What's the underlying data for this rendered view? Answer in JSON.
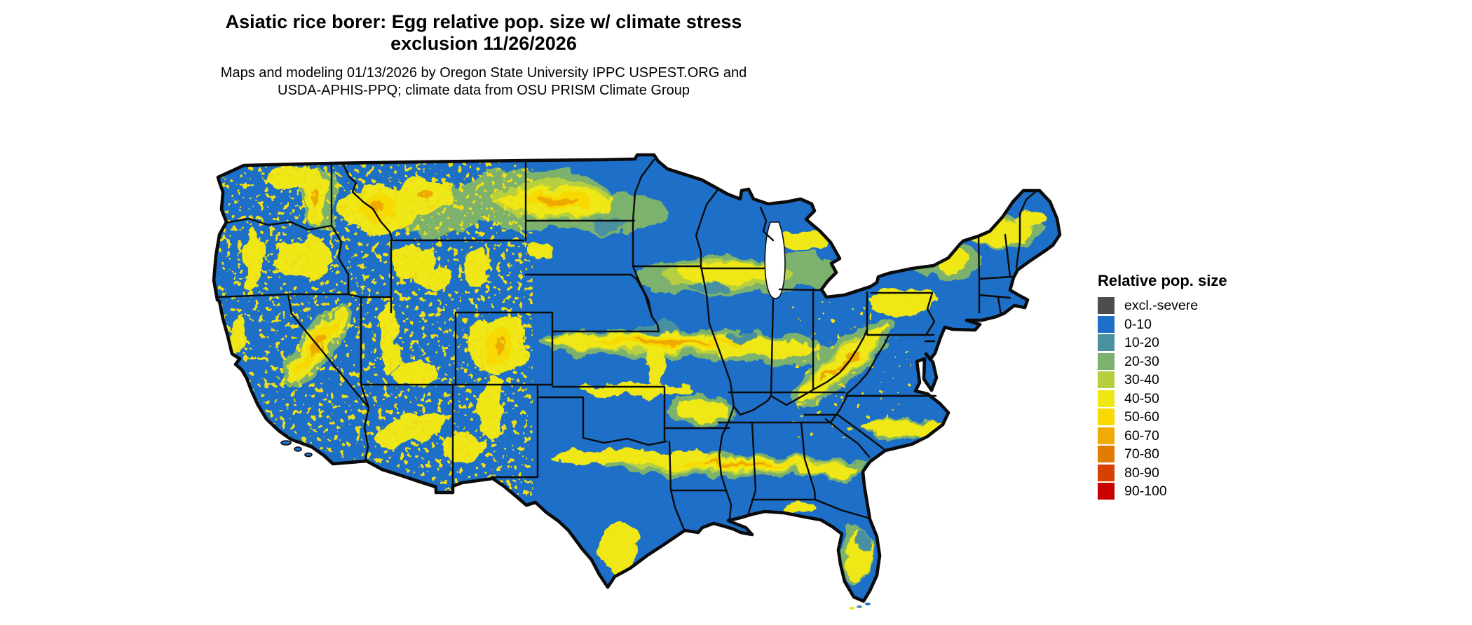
{
  "title": {
    "line1": "Asiatic rice borer: Egg relative pop. size w/ climate stress",
    "line2": "exclusion 11/26/2026"
  },
  "subtitle": {
    "line1": "Maps and modeling 01/13/2026 by Oregon State University IPPC USPEST.ORG and",
    "line2": "USDA-APHIS-PPQ; climate data from OSU PRISM Climate Group"
  },
  "legend": {
    "title": "Relative pop. size",
    "items": [
      {
        "label": "excl.-severe",
        "color": "#4d4d4d"
      },
      {
        "label": "0-10",
        "color": "#1d6fc7"
      },
      {
        "label": "10-20",
        "color": "#4a91a0"
      },
      {
        "label": "20-30",
        "color": "#7cb26d"
      },
      {
        "label": "30-40",
        "color": "#b7cf3f"
      },
      {
        "label": "40-50",
        "color": "#efe713"
      },
      {
        "label": "50-60",
        "color": "#f8d900"
      },
      {
        "label": "60-70",
        "color": "#efaa06"
      },
      {
        "label": "70-80",
        "color": "#e27c00"
      },
      {
        "label": "80-90",
        "color": "#d64000"
      },
      {
        "label": "90-100",
        "color": "#c70000"
      }
    ]
  },
  "map": {
    "region": "Contiguous United States",
    "value_shown": "Egg relative population size (0-100) with climate stress exclusion",
    "colors": {
      "base": "#1d6fc7",
      "teal": "#4a91a0",
      "green": "#7cb26d",
      "light_green": "#b7cf3f",
      "yellow": "#efe713",
      "gold": "#f8d900",
      "orange": "#efaa06",
      "deep_orange": "#e27c00",
      "red": "#c70000",
      "excluded": "#4d4d4d",
      "border": "#0b0b0b",
      "water": "#ffffff"
    }
  }
}
